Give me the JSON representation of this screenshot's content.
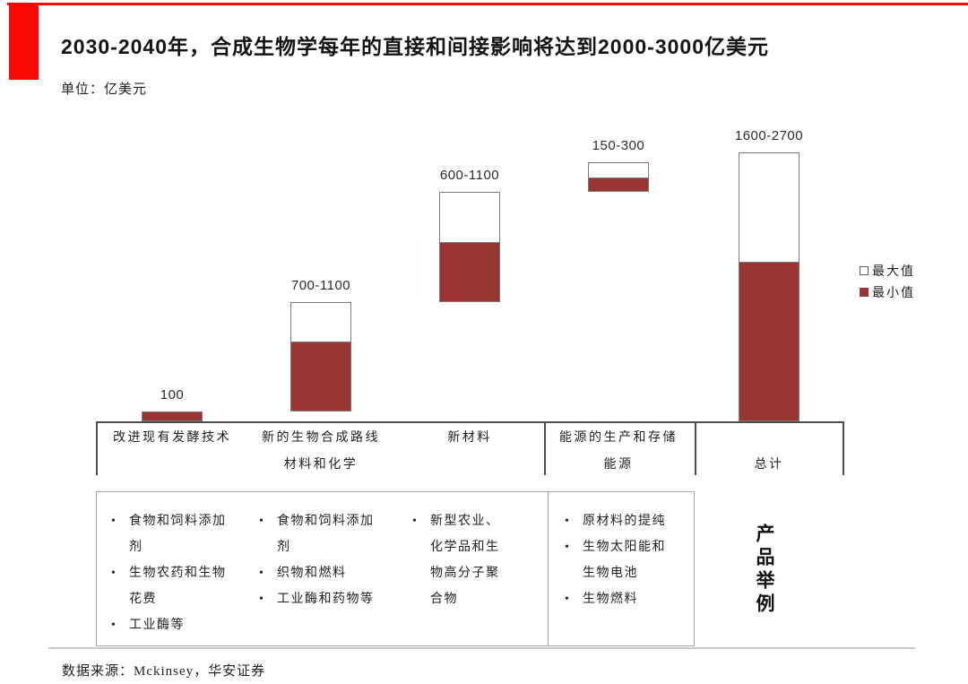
{
  "header": {
    "title": "2030-2040年，合成生物学每年的直接和间接影响将达到2000-3000亿美元",
    "unit_label": "单位：亿美元"
  },
  "legend": {
    "max_label": "最大值",
    "min_label": "最小值"
  },
  "colors": {
    "accent_red": "#fa0707",
    "bar_min_fill": "#993634",
    "bar_border": "#7a7a7a",
    "line_gray": "#4d4d4d",
    "box_gray": "#a3a3a3"
  },
  "chart_data": {
    "type": "bar",
    "subtype": "floating-range-waterfall",
    "title": "2030-2040年，合成生物学每年的直接和间接影响将达到2000-3000亿美元",
    "unit": "亿美元",
    "categories": [
      "改进现有发酵技术",
      "新的生物合成路线（材料和化学）",
      "新材料",
      "能源的生产和存储（能源）",
      "总计"
    ],
    "series": [
      {
        "name": "最大值",
        "values": [
          100,
          1100,
          1100,
          300,
          2700
        ]
      },
      {
        "name": "最小值",
        "values": [
          100,
          700,
          600,
          150,
          1600
        ]
      }
    ],
    "bases": [
      0,
      100,
      1200,
      2300,
      0
    ],
    "value_labels": [
      "100",
      "700-1100",
      "600-1100",
      "150-300",
      "1600-2700"
    ],
    "ylim": [
      0,
      2700
    ],
    "grid": false,
    "legend_position": "right",
    "axis_labels_hidden": true
  },
  "category_band": {
    "cells": [
      {
        "line1": "改进现有发酵技术",
        "line2": ""
      },
      {
        "line1": "新的生物合成路线",
        "line2": "材料和化学"
      },
      {
        "line1": "新材料",
        "line2": ""
      },
      {
        "line1": "能源的生产和存储",
        "line2": "能源"
      },
      {
        "line1": "",
        "line2": "总计"
      }
    ]
  },
  "product_examples": {
    "vertical_label": "产品举例",
    "columns": [
      {
        "lines": [
          {
            "t": "食物和饲料添加"
          },
          {
            "t": "剂"
          },
          {
            "t": "生物农药和生物"
          },
          {
            "t": "花费"
          },
          {
            "t": "工业酶等"
          }
        ]
      },
      {
        "lines": [
          {
            "t": "食物和饲料添加"
          },
          {
            "t": "剂"
          },
          {
            "t": "织物和燃料"
          },
          {
            "t": "工业酶和药物等"
          }
        ]
      },
      {
        "lines": [
          {
            "t": "新型农业、"
          },
          {
            "t": "化学品和生"
          },
          {
            "t": "物高分子聚"
          },
          {
            "t": "合物"
          }
        ]
      },
      {
        "lines": [
          {
            "t": "原材料的提纯"
          },
          {
            "t": "生物太阳能和"
          },
          {
            "t": "生物电池"
          },
          {
            "t": "生物燃料"
          }
        ]
      }
    ]
  },
  "footer": {
    "source": "数据来源：Mckinsey，华安证券"
  }
}
